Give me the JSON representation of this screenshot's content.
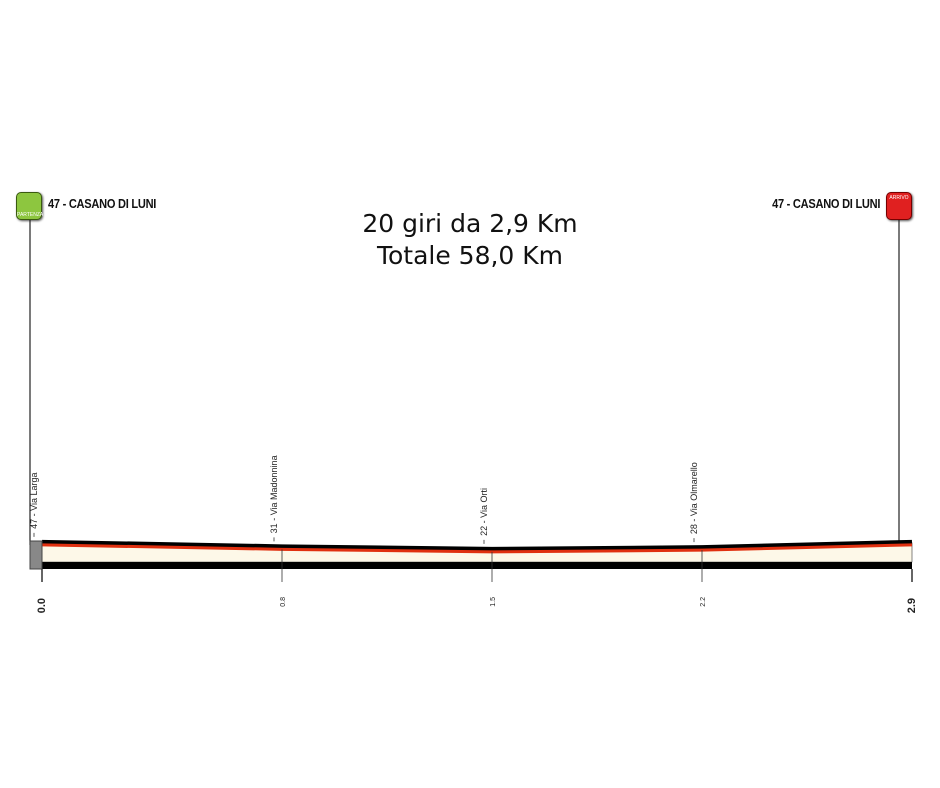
{
  "title": {
    "line1": "20 giri da 2,9 Km",
    "line2": "Totale 58,0 Km"
  },
  "start": {
    "label": "47 - CASANO DI LUNI",
    "badge": "PARTENZA",
    "icon": "checkered-flag-icon",
    "color": "#8dc63f"
  },
  "finish": {
    "label": "47 - CASANO DI LUNI",
    "badge": "ARRIVO",
    "icon": "finish-line-icon",
    "color": "#e02020"
  },
  "chart_data": {
    "type": "area",
    "title": "",
    "xlabel": "",
    "ylabel": "",
    "xlim": [
      0,
      2.9
    ],
    "x": [
      0,
      0.8,
      1.5,
      2.2,
      2.9
    ],
    "y": [
      47,
      31,
      22,
      28,
      47
    ],
    "x_ticks": [
      "0.0",
      "0.8",
      "1.5",
      "2.2",
      "2.9"
    ],
    "waypoints": [
      {
        "km": 0,
        "label": "47 - Via Larga"
      },
      {
        "km": 0.8,
        "label": "31 - Via Madonnina"
      },
      {
        "km": 1.5,
        "label": "22 - Via Orti"
      },
      {
        "km": 2.2,
        "label": "28 - Via Olmarello"
      }
    ],
    "colors": {
      "profile": "#e03010",
      "fill": "#fdf8e8",
      "base": "#000000"
    }
  }
}
